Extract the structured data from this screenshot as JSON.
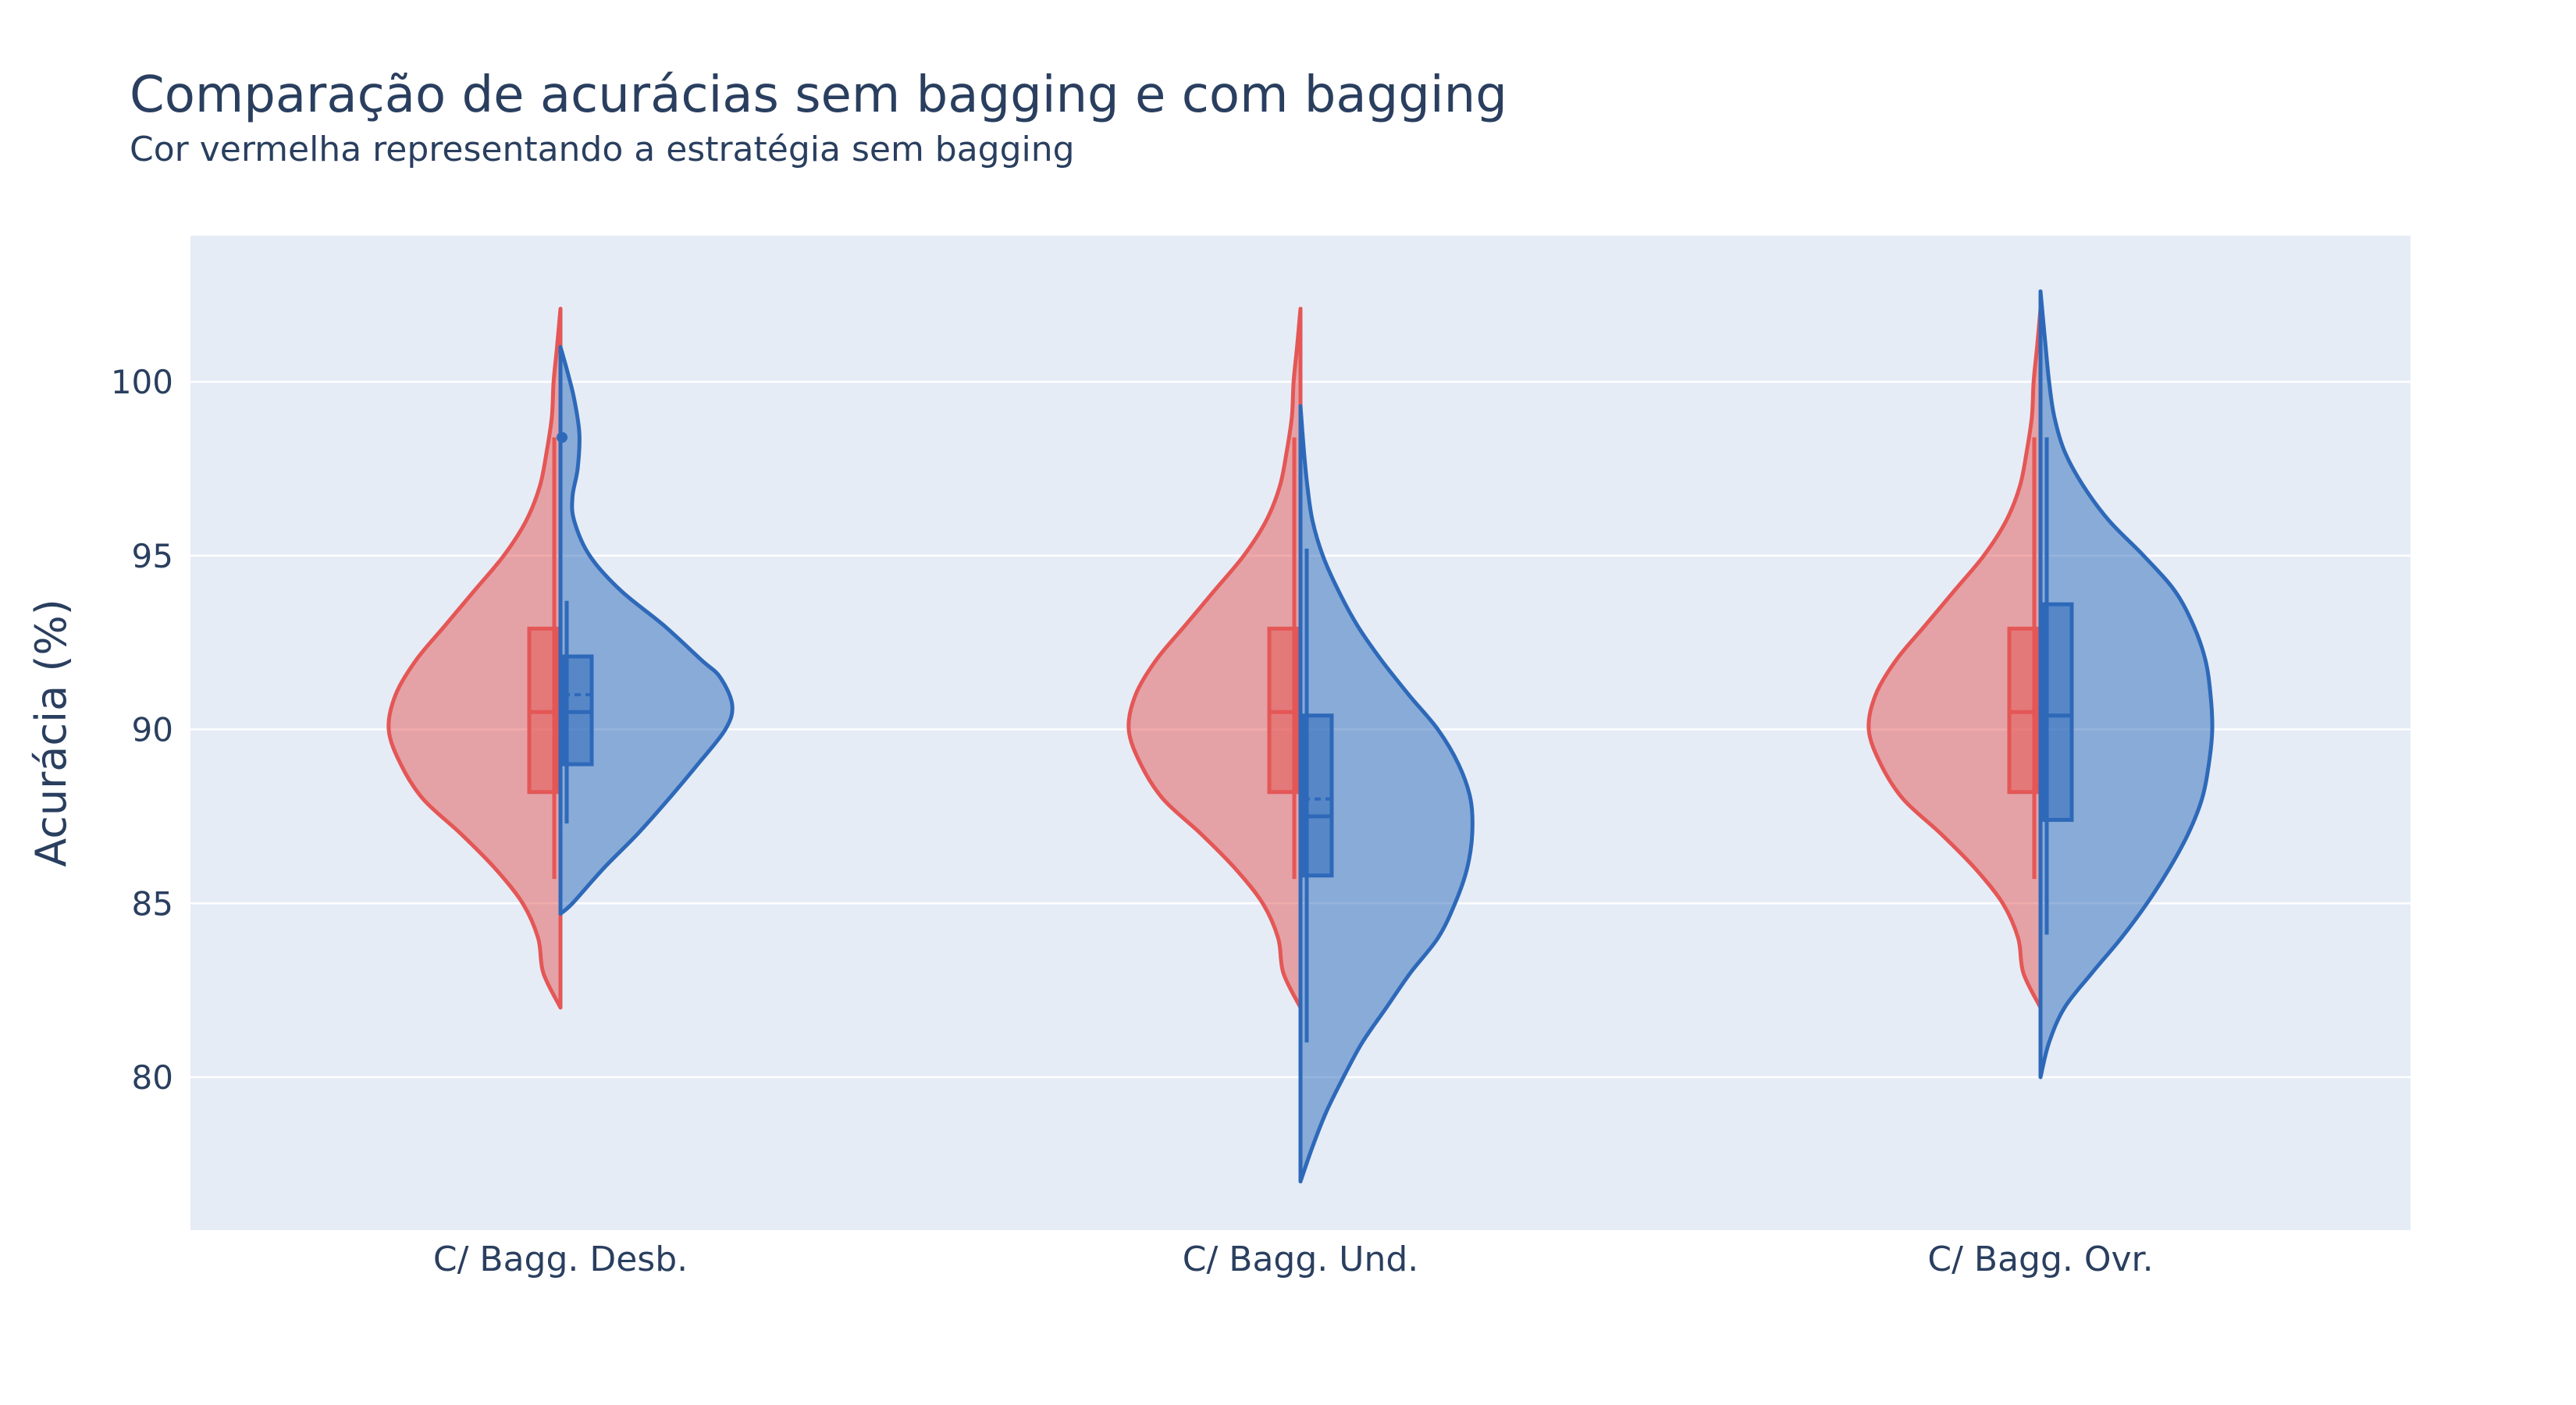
{
  "chart_data": {
    "type": "violin",
    "title": "Comparação de acurácias sem bagging e com bagging",
    "subtitle": "Cor vermelha representando a estratégia sem bagging",
    "xlabel": "",
    "ylabel": "Acurácia (%)",
    "categories": [
      "C/ Bagg. Desb.",
      "C/ Bagg. Und.",
      "C/ Bagg. Ovr."
    ],
    "yticks": [
      80,
      85,
      90,
      95,
      100
    ],
    "ylim": [
      75.6,
      104.2
    ],
    "grid": true,
    "colors": {
      "sem_bagging": "#e45756",
      "com_bagging": "#2e69b9",
      "plot_bg": "#e5ecf6",
      "grid": "#ffffff",
      "text": "#2a3f5f"
    },
    "series": [
      {
        "side": "negative",
        "color": "#e45756",
        "stats": [
          {
            "min": 82.0,
            "max": 102.1,
            "q1": 88.2,
            "median": 90.5,
            "mean": 90.5,
            "q3": 92.9,
            "whisker_low": 85.7,
            "whisker_high": 98.4,
            "density": [
              [
                82.0,
                0.0
              ],
              [
                83.0,
                0.1
              ],
              [
                84.0,
                0.13
              ],
              [
                85.0,
                0.22
              ],
              [
                86.0,
                0.38
              ],
              [
                87.0,
                0.58
              ],
              [
                88.0,
                0.8
              ],
              [
                89.0,
                0.93
              ],
              [
                90.0,
                1.0
              ],
              [
                91.0,
                0.96
              ],
              [
                92.0,
                0.84
              ],
              [
                93.0,
                0.67
              ],
              [
                94.0,
                0.5
              ],
              [
                95.0,
                0.33
              ],
              [
                96.0,
                0.2
              ],
              [
                97.0,
                0.12
              ],
              [
                98.0,
                0.08
              ],
              [
                99.0,
                0.05
              ],
              [
                100.0,
                0.04
              ],
              [
                101.0,
                0.02
              ],
              [
                102.1,
                0.0
              ]
            ]
          },
          {
            "min": 82.0,
            "max": 102.1,
            "q1": 88.2,
            "median": 90.5,
            "mean": 90.5,
            "q3": 92.9,
            "whisker_low": 85.7,
            "whisker_high": 98.4,
            "density": [
              [
                82.0,
                0.0
              ],
              [
                83.0,
                0.1
              ],
              [
                84.0,
                0.13
              ],
              [
                85.0,
                0.22
              ],
              [
                86.0,
                0.38
              ],
              [
                87.0,
                0.58
              ],
              [
                88.0,
                0.8
              ],
              [
                89.0,
                0.93
              ],
              [
                90.0,
                1.0
              ],
              [
                91.0,
                0.96
              ],
              [
                92.0,
                0.84
              ],
              [
                93.0,
                0.67
              ],
              [
                94.0,
                0.5
              ],
              [
                95.0,
                0.33
              ],
              [
                96.0,
                0.2
              ],
              [
                97.0,
                0.12
              ],
              [
                98.0,
                0.08
              ],
              [
                99.0,
                0.05
              ],
              [
                100.0,
                0.04
              ],
              [
                101.0,
                0.02
              ],
              [
                102.1,
                0.0
              ]
            ]
          },
          {
            "min": 82.0,
            "max": 102.1,
            "q1": 88.2,
            "median": 90.5,
            "mean": 90.5,
            "q3": 92.9,
            "whisker_low": 85.7,
            "whisker_high": 98.4,
            "density": [
              [
                82.0,
                0.0
              ],
              [
                83.0,
                0.1
              ],
              [
                84.0,
                0.13
              ],
              [
                85.0,
                0.22
              ],
              [
                86.0,
                0.38
              ],
              [
                87.0,
                0.58
              ],
              [
                88.0,
                0.8
              ],
              [
                89.0,
                0.93
              ],
              [
                90.0,
                1.0
              ],
              [
                91.0,
                0.96
              ],
              [
                92.0,
                0.84
              ],
              [
                93.0,
                0.67
              ],
              [
                94.0,
                0.5
              ],
              [
                95.0,
                0.33
              ],
              [
                96.0,
                0.2
              ],
              [
                97.0,
                0.12
              ],
              [
                98.0,
                0.08
              ],
              [
                99.0,
                0.05
              ],
              [
                100.0,
                0.04
              ],
              [
                101.0,
                0.02
              ],
              [
                102.1,
                0.0
              ]
            ]
          }
        ]
      },
      {
        "side": "positive",
        "color": "#2e69b9",
        "stats": [
          {
            "min": 84.7,
            "max": 101.0,
            "q1": 89.0,
            "median": 90.5,
            "mean": 91.0,
            "q3": 92.1,
            "whisker_low": 87.3,
            "whisker_high": 93.7,
            "outliers": [
              98.4
            ],
            "density": [
              [
                84.7,
                0.0
              ],
              [
                85.0,
                0.07
              ],
              [
                86.0,
                0.25
              ],
              [
                87.0,
                0.45
              ],
              [
                88.0,
                0.63
              ],
              [
                89.0,
                0.8
              ],
              [
                90.0,
                0.96
              ],
              [
                90.7,
                1.0
              ],
              [
                91.5,
                0.93
              ],
              [
                92.0,
                0.82
              ],
              [
                93.0,
                0.6
              ],
              [
                94.0,
                0.35
              ],
              [
                95.0,
                0.17
              ],
              [
                96.0,
                0.08
              ],
              [
                96.7,
                0.07
              ],
              [
                97.5,
                0.1
              ],
              [
                98.5,
                0.11
              ],
              [
                99.5,
                0.08
              ],
              [
                100.3,
                0.04
              ],
              [
                101.0,
                0.0
              ]
            ]
          },
          {
            "min": 77.0,
            "max": 99.3,
            "q1": 85.8,
            "median": 87.5,
            "mean": 88.0,
            "q3": 90.4,
            "whisker_low": 81.0,
            "whisker_high": 95.2,
            "density": [
              [
                77.0,
                0.0
              ],
              [
                78.0,
                0.07
              ],
              [
                79.0,
                0.15
              ],
              [
                80.0,
                0.25
              ],
              [
                81.0,
                0.36
              ],
              [
                82.0,
                0.5
              ],
              [
                83.0,
                0.64
              ],
              [
                84.0,
                0.8
              ],
              [
                85.0,
                0.9
              ],
              [
                86.0,
                0.97
              ],
              [
                87.0,
                1.0
              ],
              [
                88.0,
                0.99
              ],
              [
                89.0,
                0.92
              ],
              [
                90.0,
                0.8
              ],
              [
                91.0,
                0.63
              ],
              [
                92.0,
                0.47
              ],
              [
                93.0,
                0.33
              ],
              [
                94.0,
                0.22
              ],
              [
                95.0,
                0.13
              ],
              [
                96.0,
                0.07
              ],
              [
                97.0,
                0.04
              ],
              [
                98.0,
                0.02
              ],
              [
                99.3,
                0.0
              ]
            ]
          },
          {
            "min": 80.0,
            "max": 102.6,
            "q1": 87.4,
            "median": 90.4,
            "mean": 90.4,
            "q3": 93.6,
            "whisker_low": 84.1,
            "whisker_high": 98.4,
            "density": [
              [
                80.0,
                0.0
              ],
              [
                81.0,
                0.05
              ],
              [
                82.0,
                0.14
              ],
              [
                83.0,
                0.3
              ],
              [
                84.0,
                0.47
              ],
              [
                85.0,
                0.62
              ],
              [
                86.0,
                0.75
              ],
              [
                87.0,
                0.86
              ],
              [
                88.0,
                0.94
              ],
              [
                89.0,
                0.98
              ],
              [
                90.0,
                1.0
              ],
              [
                91.0,
                0.99
              ],
              [
                92.0,
                0.96
              ],
              [
                93.0,
                0.89
              ],
              [
                94.0,
                0.78
              ],
              [
                95.0,
                0.6
              ],
              [
                96.0,
                0.4
              ],
              [
                97.0,
                0.25
              ],
              [
                98.0,
                0.14
              ],
              [
                99.0,
                0.08
              ],
              [
                100.0,
                0.05
              ],
              [
                101.0,
                0.03
              ],
              [
                102.6,
                0.0
              ]
            ]
          }
        ]
      }
    ]
  }
}
